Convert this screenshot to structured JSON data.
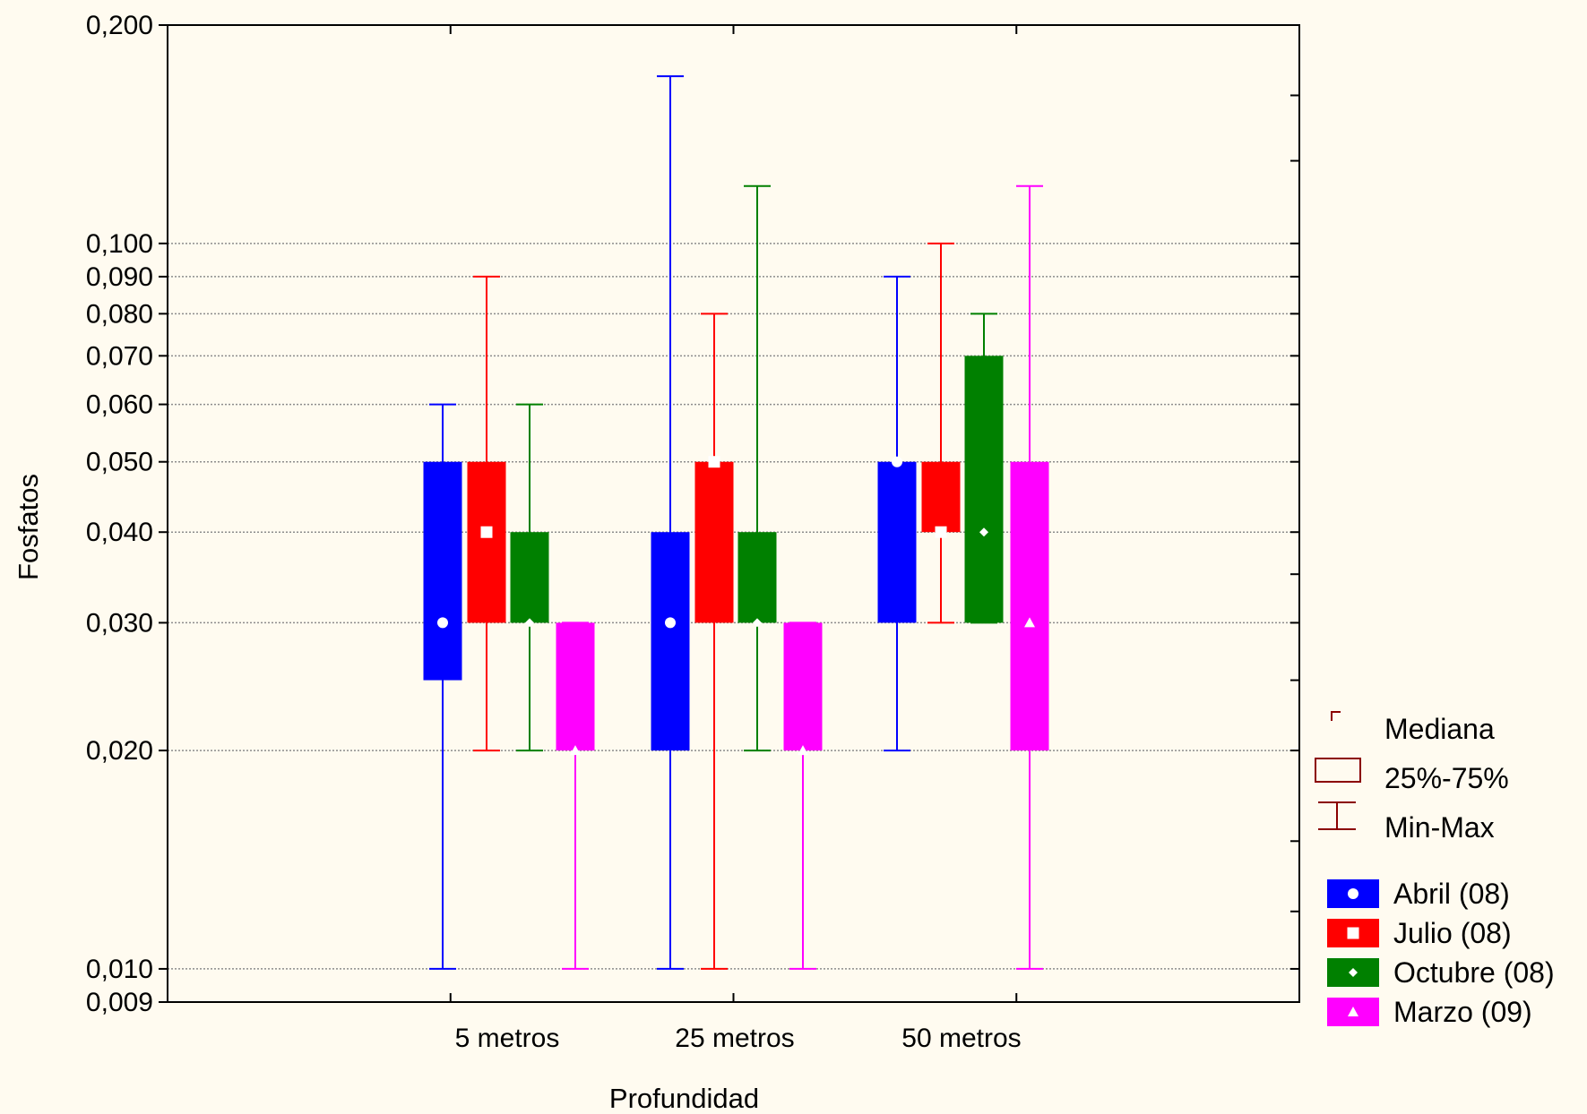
{
  "chart_data": {
    "type": "box",
    "xlabel": "Profundidad",
    "ylabel": "Fosfatos",
    "y_scale": "log",
    "ylim": [
      0.009,
      0.2
    ],
    "y_ticks": [
      {
        "value": 0.009,
        "label": "0,009"
      },
      {
        "value": 0.01,
        "label": "0,010"
      },
      {
        "value": 0.02,
        "label": "0,020"
      },
      {
        "value": 0.03,
        "label": "0,030"
      },
      {
        "value": 0.04,
        "label": "0,040"
      },
      {
        "value": 0.05,
        "label": "0,050"
      },
      {
        "value": 0.06,
        "label": "0,060"
      },
      {
        "value": 0.07,
        "label": "0,070"
      },
      {
        "value": 0.08,
        "label": "0,080"
      },
      {
        "value": 0.09,
        "label": "0,090"
      },
      {
        "value": 0.1,
        "label": "0,100"
      },
      {
        "value": 0.2,
        "label": "0,200"
      }
    ],
    "grid": true,
    "categories": [
      "5 metros",
      "25 metros",
      "50 metros"
    ],
    "series": [
      {
        "name": "Abril (08)",
        "color": "#0000FF",
        "marker": "circle",
        "boxes": [
          {
            "min": 0.01,
            "q1": 0.025,
            "median": 0.03,
            "q3": 0.05,
            "max": 0.06
          },
          {
            "min": 0.01,
            "q1": 0.02,
            "median": 0.03,
            "q3": 0.04,
            "max": 0.17
          },
          {
            "min": 0.02,
            "q1": 0.03,
            "median": 0.05,
            "q3": 0.05,
            "max": 0.09
          }
        ]
      },
      {
        "name": "Julio (08)",
        "color": "#FF0000",
        "marker": "square",
        "boxes": [
          {
            "min": 0.02,
            "q1": 0.03,
            "median": 0.04,
            "q3": 0.05,
            "max": 0.09
          },
          {
            "min": 0.01,
            "q1": 0.03,
            "median": 0.05,
            "q3": 0.05,
            "max": 0.08
          },
          {
            "min": 0.03,
            "q1": 0.04,
            "median": 0.04,
            "q3": 0.05,
            "max": 0.1
          }
        ]
      },
      {
        "name": "Octubre (08)",
        "color": "#008000",
        "marker": "diamond",
        "boxes": [
          {
            "min": 0.02,
            "q1": 0.03,
            "median": 0.03,
            "q3": 0.04,
            "max": 0.06
          },
          {
            "min": 0.02,
            "q1": 0.03,
            "median": 0.03,
            "q3": 0.04,
            "max": 0.12
          },
          {
            "min": 0.03,
            "q1": 0.03,
            "median": 0.04,
            "q3": 0.07,
            "max": 0.08
          }
        ]
      },
      {
        "name": "Marzo (09)",
        "color": "#FF00FF",
        "marker": "triangle",
        "boxes": [
          {
            "min": 0.01,
            "q1": 0.02,
            "median": 0.02,
            "q3": 0.03,
            "max": 0.03
          },
          {
            "min": 0.01,
            "q1": 0.02,
            "median": 0.02,
            "q3": 0.03,
            "max": 0.03
          },
          {
            "min": 0.01,
            "q1": 0.02,
            "median": 0.03,
            "q3": 0.05,
            "max": 0.12
          }
        ]
      }
    ],
    "legend_stats": {
      "median": "Mediana",
      "box": "25%-75%",
      "whisker": "Min-Max",
      "color": "#8B0000"
    },
    "legend_placement": "right"
  }
}
